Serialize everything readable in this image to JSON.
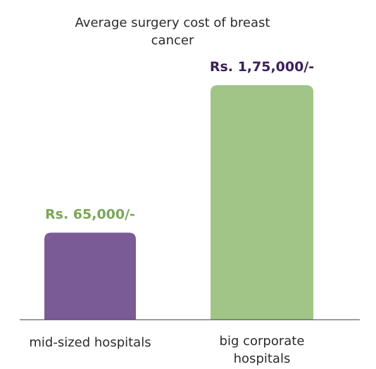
{
  "chart_data": {
    "type": "bar",
    "title": "Average surgery cost of breast cancer",
    "categories": [
      "mid-sized hospitals",
      "big corporate hospitals"
    ],
    "values": [
      65000,
      175000
    ],
    "value_labels": [
      "Rs. 65,000/-",
      "Rs. 1,75,000/-"
    ],
    "bar_colors": [
      "#7a5b96",
      "#a0c586"
    ],
    "label_colors": [
      "#7ba659",
      "#3c1f5a"
    ],
    "xlabel": "",
    "ylabel": "",
    "ylim": [
      0,
      175000
    ],
    "grid": false,
    "legend": "none"
  }
}
